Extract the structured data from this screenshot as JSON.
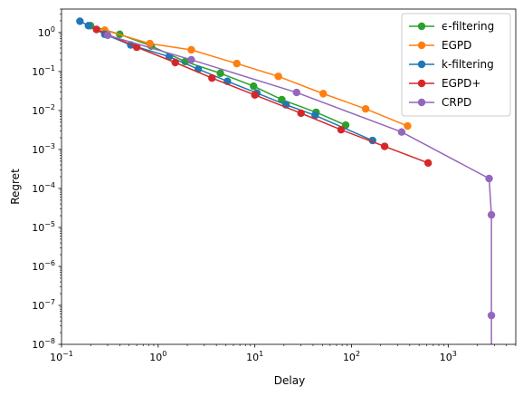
{
  "chart_data": {
    "type": "line",
    "title": "",
    "xlabel": "Delay",
    "ylabel": "Regret",
    "xscale": "log",
    "yscale": "log",
    "xlim": [
      0.1,
      5000
    ],
    "ylim": [
      1e-08,
      4
    ],
    "x_ticks": [
      {
        "value": 0.1,
        "base": "10",
        "exp": "−1"
      },
      {
        "value": 1,
        "base": "10",
        "exp": "0"
      },
      {
        "value": 10,
        "base": "10",
        "exp": "1"
      },
      {
        "value": 100,
        "base": "10",
        "exp": "2"
      },
      {
        "value": 1000,
        "base": "10",
        "exp": "3"
      }
    ],
    "y_ticks": [
      {
        "value": 1e-08,
        "base": "10",
        "exp": "−8"
      },
      {
        "value": 1e-07,
        "base": "10",
        "exp": "−7"
      },
      {
        "value": 1e-06,
        "base": "10",
        "exp": "−6"
      },
      {
        "value": 1e-05,
        "base": "10",
        "exp": "−5"
      },
      {
        "value": 0.0001,
        "base": "10",
        "exp": "−4"
      },
      {
        "value": 0.001,
        "base": "10",
        "exp": "−3"
      },
      {
        "value": 0.01,
        "base": "10",
        "exp": "−2"
      },
      {
        "value": 0.1,
        "base": "10",
        "exp": "−1"
      },
      {
        "value": 1,
        "base": "10",
        "exp": "0"
      }
    ],
    "grid": false,
    "legend_position": "top-right",
    "series": [
      {
        "name": "ϵ-filtering",
        "color": "#2ca02c",
        "x": [
          0.2,
          0.4,
          0.85,
          1.9,
          4.4,
          9.7,
          19,
          43,
          87
        ],
        "y": [
          1.5,
          0.9,
          0.45,
          0.18,
          0.09,
          0.042,
          0.019,
          0.009,
          0.0042
        ]
      },
      {
        "name": "EGPD",
        "color": "#ff7f0e",
        "x": [
          0.28,
          0.82,
          2.2,
          6.5,
          17.5,
          51,
          140,
          380
        ],
        "y": [
          1.15,
          0.52,
          0.36,
          0.16,
          0.075,
          0.027,
          0.011,
          0.004
        ]
      },
      {
        "name": "k-filtering",
        "color": "#1f77b4",
        "x": [
          0.155,
          0.19,
          0.28,
          0.52,
          1.3,
          2.6,
          5.2,
          10.5,
          21,
          42,
          165
        ],
        "y": [
          1.95,
          1.5,
          0.9,
          0.48,
          0.24,
          0.115,
          0.056,
          0.028,
          0.014,
          0.0075,
          0.0017
        ]
      },
      {
        "name": "EGPD+",
        "color": "#d62728",
        "x": [
          0.23,
          0.6,
          1.5,
          3.6,
          10,
          30,
          78,
          220,
          620
        ],
        "y": [
          1.2,
          0.42,
          0.17,
          0.068,
          0.025,
          0.0085,
          0.0032,
          0.0012,
          0.00045
        ]
      },
      {
        "name": "CRPD",
        "color": "#9467bd",
        "x": [
          0.3,
          2.2,
          27,
          330,
          2650,
          2800,
          2800,
          2800
        ],
        "y": [
          0.85,
          0.2,
          0.029,
          0.0028,
          0.00018,
          2.1e-05,
          5.5e-08,
          1e-09
        ]
      }
    ]
  }
}
